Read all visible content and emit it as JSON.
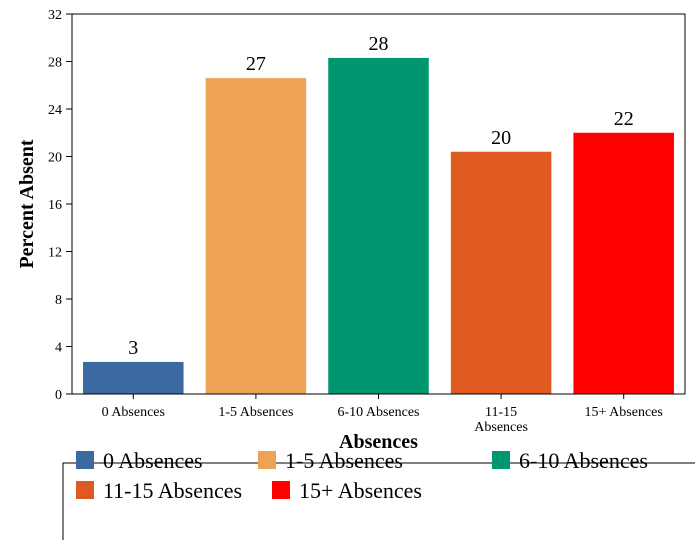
{
  "chart_data": {
    "type": "bar",
    "categories": [
      "0 Absences",
      "1-5 Absences",
      "6-10 Absences",
      "11-15 Absences",
      "15+ Absences"
    ],
    "category_tick_labels": [
      [
        "0 Absences"
      ],
      [
        "1-5 Absences"
      ],
      [
        "6-10 Absences"
      ],
      [
        "11-15",
        "Absences"
      ],
      [
        "15+ Absences"
      ]
    ],
    "values": [
      2.7,
      26.6,
      28.3,
      20.4,
      22.0
    ],
    "data_labels": [
      "3",
      "27",
      "28",
      "20",
      "22"
    ],
    "colors": [
      "#3b6aa0",
      "#eda353",
      "#009670",
      "#de5a20",
      "#ff0000"
    ],
    "xlabel": "Absences",
    "ylabel": "Percent Absent",
    "ylim": [
      0,
      32
    ],
    "yticks": [
      0,
      4,
      8,
      12,
      16,
      20,
      24,
      28,
      32
    ],
    "grid": false,
    "legend": {
      "placement": "bottom",
      "entries": [
        "0 Absences",
        "1-5 Absences",
        "6-10 Absences",
        "11-15 Absences",
        "15+ Absences"
      ]
    }
  }
}
